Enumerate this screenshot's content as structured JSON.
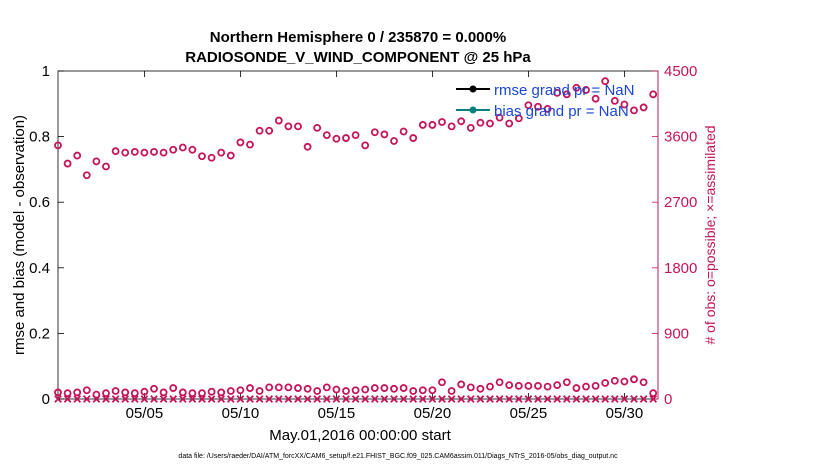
{
  "chart_data": {
    "type": "scatter",
    "title_line1": "Northern Hemisphere 0 / 235870 = 0.000%",
    "title_line2": "RADIOSONDE_V_WIND_COMPONENT @ 25 hPa",
    "xlabel": "May.01,2016 00:00:00 start",
    "ylabel_left": "rmse and bias (model - observation)",
    "ylabel_right": "# of obs: o=possible; ×=assimilated",
    "footer": "data file: /Users/raeder/DAI/ATM_forcXX/CAM6_setup/f.e21.FHIST_BGC.f09_025.CAM6assim.011/Diags_NTrS_2016-05/obs_diag_output.nc",
    "xlim": [
      0.5,
      31.75
    ],
    "xticks": [
      5,
      10,
      15,
      20,
      25,
      30
    ],
    "xtick_labels": [
      "05/05",
      "05/10",
      "05/15",
      "05/20",
      "05/25",
      "05/30"
    ],
    "ylim_left": [
      0,
      1
    ],
    "yticks_left": [
      0,
      0.2,
      0.4,
      0.6,
      0.8,
      1
    ],
    "ytick_labels_left": [
      "0",
      "0.2",
      "0.4",
      "0.6",
      "0.8",
      "1"
    ],
    "ylim_right": [
      0,
      4500
    ],
    "yticks_right": [
      0,
      900,
      1800,
      2700,
      3600,
      4500
    ],
    "ytick_labels_right": [
      "0",
      "900",
      "1800",
      "2700",
      "3600",
      "4500"
    ],
    "legend": {
      "placement": "top-right",
      "entries": [
        {
          "label": "rmse grand pr = NaN",
          "color": "#000000"
        },
        {
          "label": "bias grand pr = NaN",
          "color": "#0a7f7f"
        }
      ]
    },
    "series_color": "#c4145a",
    "series": [
      {
        "kind": "possible",
        "marker": "o",
        "x": [
          0.5,
          1,
          1.5,
          2,
          2.5,
          3,
          3.5,
          4,
          4.5,
          5,
          5.5,
          6,
          6.5,
          7,
          7.5,
          8,
          8.5,
          9,
          9.5,
          10,
          10.5,
          11,
          11.5,
          12,
          12.5,
          13,
          13.5,
          14,
          14.5,
          15,
          15.5,
          16,
          16.5,
          17,
          17.5,
          18,
          18.5,
          19,
          19.5,
          20,
          20.5,
          21,
          21.5,
          22,
          22.5,
          23,
          23.5,
          24,
          24.5,
          25,
          25.5,
          26,
          26.5,
          27,
          27.5,
          28,
          28.5,
          29,
          29.5,
          30,
          30.5,
          31,
          31.5
        ],
        "values": [
          3480,
          3230,
          3340,
          3070,
          3260,
          3190,
          3400,
          3380,
          3390,
          3380,
          3390,
          3380,
          3420,
          3450,
          3420,
          3330,
          3310,
          3380,
          3340,
          3520,
          3490,
          3680,
          3680,
          3820,
          3740,
          3740,
          3460,
          3720,
          3620,
          3570,
          3580,
          3620,
          3480,
          3660,
          3630,
          3540,
          3670,
          3580,
          3760,
          3760,
          3800,
          3740,
          3810,
          3720,
          3790,
          3780,
          3860,
          3780,
          3850,
          4030,
          4010,
          3980,
          4200,
          4180,
          4270,
          4240,
          4120,
          4360,
          4090,
          4040,
          3960,
          4000,
          4180
        ]
      },
      {
        "kind": "possible",
        "marker": "o",
        "x": [
          0.5,
          1,
          1.5,
          2,
          2.5,
          3,
          3.5,
          4,
          4.5,
          5,
          5.5,
          6,
          6.5,
          7,
          7.5,
          8,
          8.5,
          9,
          9.5,
          10,
          10.5,
          11,
          11.5,
          12,
          12.5,
          13,
          13.5,
          14,
          14.5,
          15,
          15.5,
          16,
          16.5,
          17,
          17.5,
          18,
          18.5,
          19,
          19.5,
          20,
          20.5,
          21,
          21.5,
          22,
          22.5,
          23,
          23.5,
          24,
          24.5,
          25,
          25.5,
          26,
          26.5,
          27,
          27.5,
          28,
          28.5,
          29,
          29.5,
          30,
          30.5,
          31,
          31.5
        ],
        "values": [
          90,
          80,
          90,
          120,
          60,
          80,
          110,
          90,
          80,
          100,
          140,
          90,
          150,
          90,
          80,
          80,
          100,
          90,
          110,
          120,
          150,
          110,
          160,
          160,
          160,
          150,
          140,
          110,
          160,
          130,
          110,
          120,
          130,
          150,
          150,
          140,
          150,
          110,
          120,
          120,
          230,
          110,
          200,
          160,
          140,
          170,
          230,
          190,
          180,
          180,
          180,
          170,
          190,
          230,
          150,
          170,
          180,
          220,
          250,
          240,
          270,
          230,
          80
        ]
      },
      {
        "kind": "assimilated",
        "marker": "x",
        "x": [
          0.5,
          1,
          1.5,
          2,
          2.5,
          3,
          3.5,
          4,
          4.5,
          5,
          5.5,
          6,
          6.5,
          7,
          7.5,
          8,
          8.5,
          9,
          9.5,
          10,
          10.5,
          11,
          11.5,
          12,
          12.5,
          13,
          13.5,
          14,
          14.5,
          15,
          15.5,
          16,
          16.5,
          17,
          17.5,
          18,
          18.5,
          19,
          19.5,
          20,
          20.5,
          21,
          21.5,
          22,
          22.5,
          23,
          23.5,
          24,
          24.5,
          25,
          25.5,
          26,
          26.5,
          27,
          27.5,
          28,
          28.5,
          29,
          29.5,
          30,
          30.5,
          31,
          31.5
        ],
        "values": [
          0,
          0,
          0,
          0,
          0,
          0,
          0,
          0,
          0,
          0,
          0,
          0,
          0,
          0,
          0,
          0,
          0,
          0,
          0,
          0,
          0,
          0,
          0,
          0,
          0,
          0,
          0,
          0,
          0,
          0,
          0,
          0,
          0,
          0,
          0,
          0,
          0,
          0,
          0,
          0,
          0,
          0,
          0,
          0,
          0,
          0,
          0,
          0,
          0,
          0,
          0,
          0,
          0,
          0,
          0,
          0,
          0,
          0,
          0,
          0,
          0,
          0,
          0
        ]
      }
    ]
  }
}
